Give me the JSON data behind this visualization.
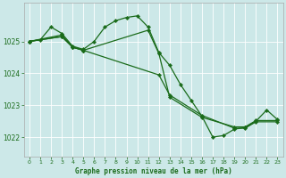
{
  "background_color": "#cce8e8",
  "grid_color": "#ffffff",
  "line_color": "#1a6b1a",
  "xlabel": "Graphe pression niveau de la mer (hPa)",
  "ylim": [
    1021.4,
    1026.2
  ],
  "xlim": [
    -0.5,
    23.5
  ],
  "yticks": [
    1022,
    1023,
    1024,
    1025
  ],
  "xticks": [
    0,
    1,
    2,
    3,
    4,
    5,
    6,
    7,
    8,
    9,
    10,
    11,
    12,
    13,
    14,
    15,
    16,
    17,
    18,
    19,
    20,
    21,
    22,
    23
  ],
  "line1_x": [
    0,
    1,
    2,
    3,
    4,
    5,
    6,
    7,
    8,
    9,
    10,
    11,
    12,
    13,
    14,
    15,
    16,
    17,
    18,
    19,
    20,
    21,
    22,
    23
  ],
  "line1_y": [
    1025.0,
    1025.05,
    1025.45,
    1025.25,
    1024.85,
    1024.75,
    1025.0,
    1025.45,
    1025.65,
    1025.75,
    1025.8,
    1025.45,
    1024.65,
    1024.25,
    1023.65,
    1023.15,
    1022.65,
    1022.0,
    1022.05,
    1022.25,
    1022.3,
    1022.5,
    1022.85,
    1022.55
  ],
  "line2_x": [
    0,
    3,
    4,
    5,
    11,
    12,
    13,
    16,
    19,
    20,
    21,
    23
  ],
  "line2_y": [
    1025.0,
    1025.2,
    1024.82,
    1024.72,
    1025.35,
    1024.62,
    1023.25,
    1022.62,
    1022.32,
    1022.32,
    1022.52,
    1022.52
  ],
  "line3_x": [
    0,
    3,
    4,
    5,
    12,
    13,
    16,
    19,
    20,
    21,
    23
  ],
  "line3_y": [
    1025.0,
    1025.15,
    1024.82,
    1024.72,
    1023.95,
    1023.32,
    1022.68,
    1022.28,
    1022.28,
    1022.48,
    1022.48
  ],
  "line4_x": [
    0,
    3,
    4,
    5
  ],
  "line4_y": [
    1025.0,
    1025.15,
    1024.82,
    1024.72
  ]
}
